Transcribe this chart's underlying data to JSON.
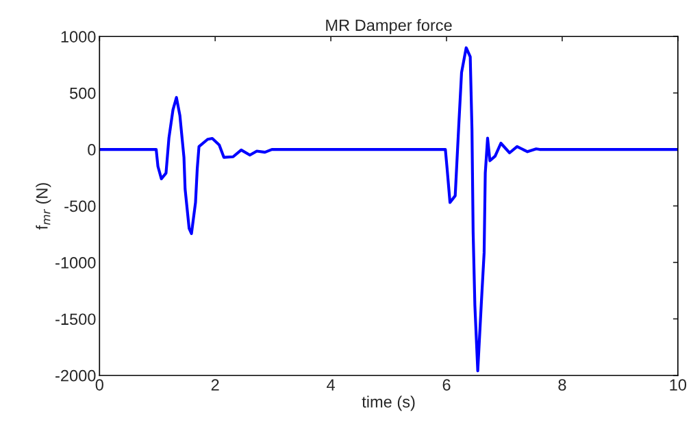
{
  "chart_data": {
    "type": "line",
    "title": "MR Damper force",
    "xlabel": "time (s)",
    "ylabel": "f$_{mr}$ (N)",
    "xlim": [
      0,
      10
    ],
    "ylim": [
      -2000,
      1000
    ],
    "xticks": [
      0,
      2,
      4,
      6,
      8,
      10
    ],
    "yticks": [
      -2000,
      -1500,
      -1000,
      -500,
      0,
      500,
      1000
    ],
    "grid": false,
    "legend": false,
    "line_style": "solid",
    "marker": "none",
    "series": [
      {
        "color": "#0000ff",
        "x": [
          0,
          0.98,
          1.01,
          1.07,
          1.15,
          1.2,
          1.27,
          1.33,
          1.39,
          1.46,
          1.48,
          1.55,
          1.59,
          1.66,
          1.69,
          1.72,
          1.87,
          1.95,
          2.07,
          2.15,
          2.31,
          2.45,
          2.6,
          2.72,
          2.86,
          2.98,
          5.98,
          6.01,
          6.06,
          6.15,
          6.21,
          6.26,
          6.34,
          6.41,
          6.44,
          6.46,
          6.49,
          6.54,
          6.6,
          6.65,
          6.67,
          6.71,
          6.75,
          6.84,
          6.94,
          7.09,
          7.22,
          7.4,
          7.55,
          7.61,
          10
        ],
        "values": [
          0,
          0,
          -150,
          -260,
          -210,
          100,
          350,
          460,
          300,
          -70,
          -350,
          -700,
          -745,
          -470,
          -170,
          25,
          90,
          97,
          40,
          -70,
          -65,
          -5,
          -50,
          -15,
          -25,
          0,
          0,
          -170,
          -470,
          -410,
          195,
          680,
          900,
          820,
          175,
          -730,
          -1380,
          -1960,
          -1380,
          -915,
          -210,
          100,
          -100,
          -60,
          55,
          -30,
          25,
          -20,
          5,
          0,
          0
        ]
      }
    ]
  }
}
